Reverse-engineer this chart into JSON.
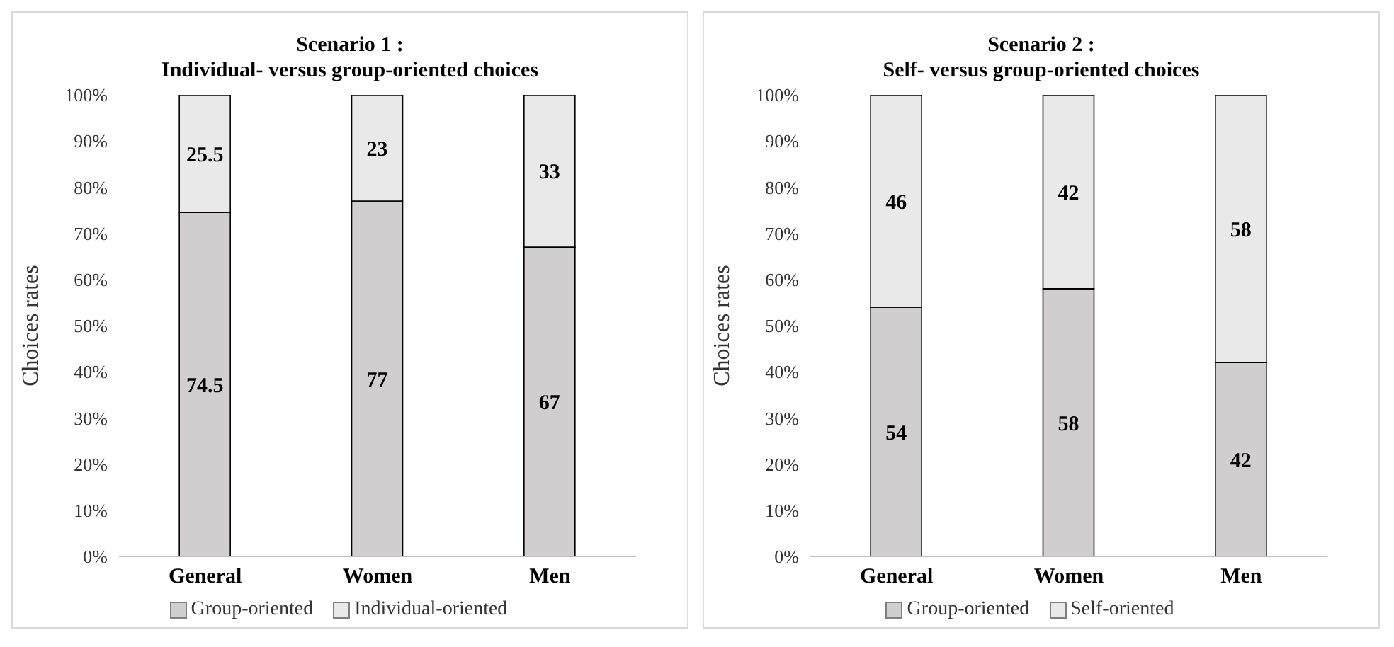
{
  "chart_data": [
    {
      "type": "bar",
      "title": "Scenario 1 :",
      "subtitle": "Individual- versus group-oriented choices",
      "ylabel": "Choices rates",
      "categories": [
        "General",
        "Women",
        "Men"
      ],
      "stacked": true,
      "data_labels": true,
      "legend": "bottom",
      "grid": false,
      "series": [
        {
          "name": "Group-oriented",
          "color": "#d0cece",
          "values": [
            74.5,
            77,
            67
          ]
        },
        {
          "name": "Individual-oriented",
          "color": "#e9e9e9",
          "values": [
            25.5,
            23,
            33
          ]
        }
      ],
      "ylim": [
        0,
        100
      ],
      "yticks": [
        {
          "value": 0,
          "label": "0%"
        },
        {
          "value": 10,
          "label": "10%"
        },
        {
          "value": 20,
          "label": "20%"
        },
        {
          "value": 30,
          "label": "30%"
        },
        {
          "value": 40,
          "label": "40%"
        },
        {
          "value": 50,
          "label": "50%"
        },
        {
          "value": 60,
          "label": "60%"
        },
        {
          "value": 70,
          "label": "70%"
        },
        {
          "value": 80,
          "label": "80%"
        },
        {
          "value": 90,
          "label": "90%"
        },
        {
          "value": 100,
          "label": "100%"
        }
      ]
    },
    {
      "type": "bar",
      "title": "Scenario 2 :",
      "subtitle": "Self- versus group-oriented choices",
      "ylabel": "Choices rates",
      "categories": [
        "General",
        "Women",
        "Men"
      ],
      "stacked": true,
      "data_labels": true,
      "legend": "bottom",
      "grid": false,
      "series": [
        {
          "name": "Group-oriented",
          "color": "#d0cece",
          "values": [
            54,
            58,
            42
          ]
        },
        {
          "name": "Self-oriented",
          "color": "#e9e9e9",
          "values": [
            46,
            42,
            58
          ]
        }
      ],
      "ylim": [
        0,
        100
      ],
      "yticks": [
        {
          "value": 0,
          "label": "0%"
        },
        {
          "value": 10,
          "label": "10%"
        },
        {
          "value": 20,
          "label": "20%"
        },
        {
          "value": 30,
          "label": "30%"
        },
        {
          "value": 40,
          "label": "40%"
        },
        {
          "value": 50,
          "label": "50%"
        },
        {
          "value": 60,
          "label": "60%"
        },
        {
          "value": 70,
          "label": "70%"
        },
        {
          "value": 80,
          "label": "80%"
        },
        {
          "value": 90,
          "label": "90%"
        },
        {
          "value": 100,
          "label": "100%"
        }
      ]
    }
  ]
}
